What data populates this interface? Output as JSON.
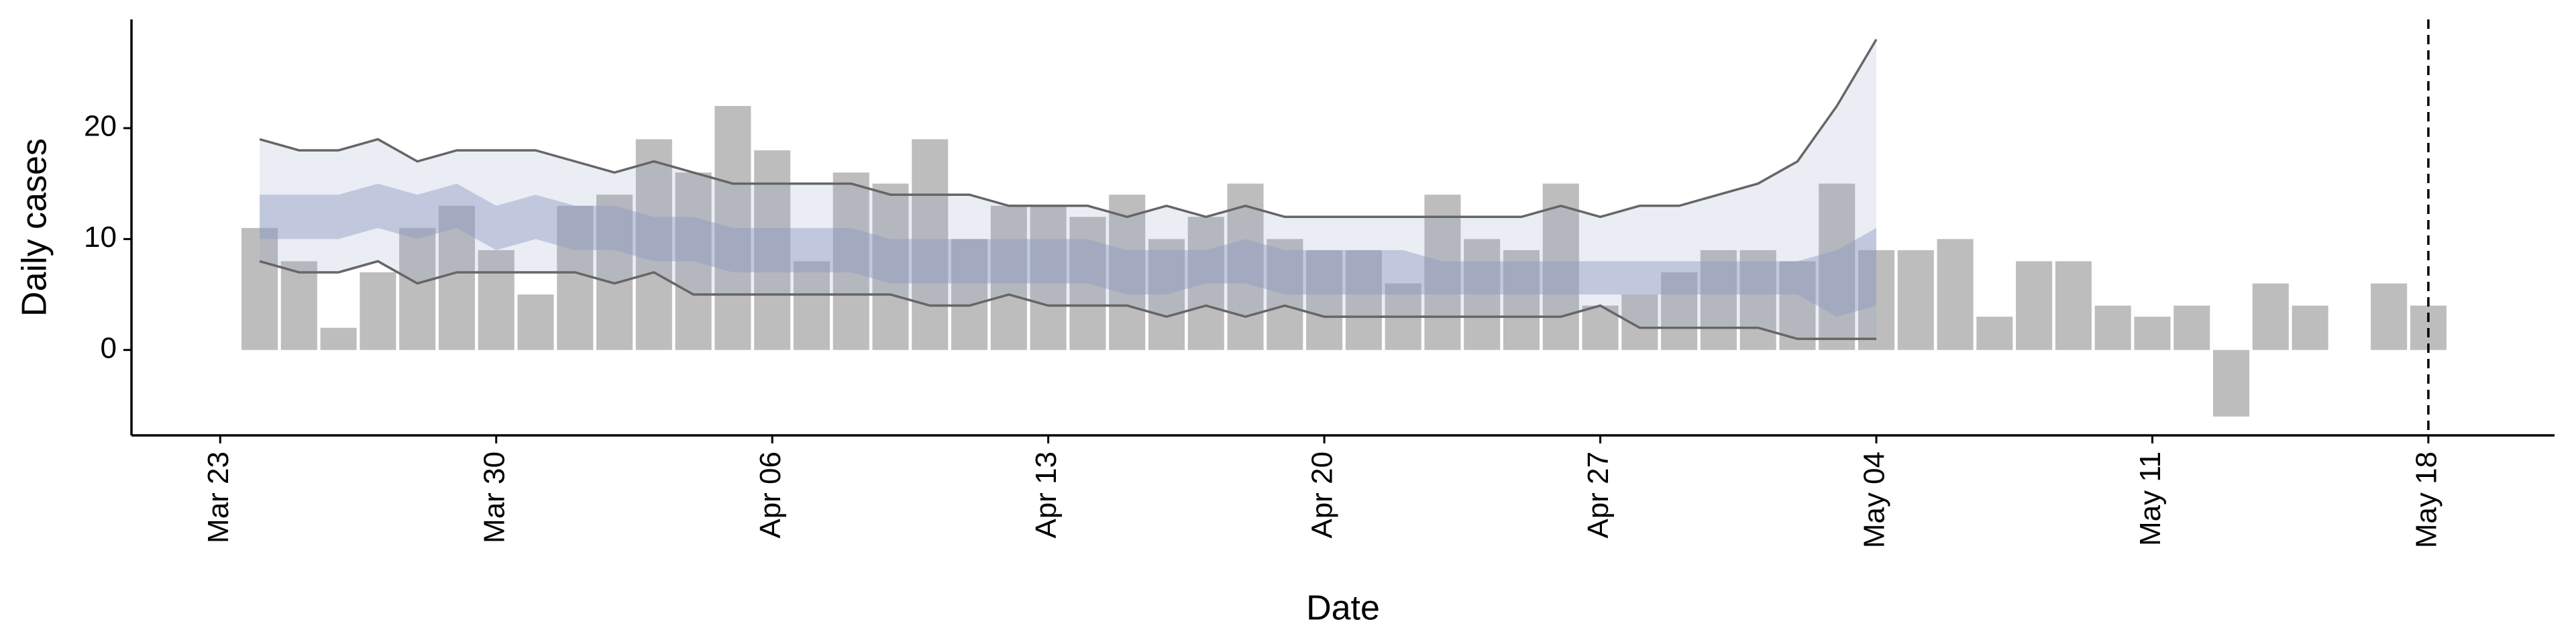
{
  "chart_data": {
    "type": "bar",
    "x_label": "Date",
    "y_label": "Daily cases",
    "x": [
      1,
      2,
      3,
      4,
      5,
      6,
      7,
      8,
      9,
      10,
      11,
      12,
      13,
      14,
      15,
      16,
      17,
      18,
      19,
      20,
      21,
      22,
      23,
      24,
      25,
      26,
      27,
      28,
      29,
      30,
      31,
      32,
      33,
      34,
      35,
      36,
      37,
      38,
      39,
      40,
      41,
      42,
      43,
      44,
      45,
      46,
      47,
      48,
      49,
      50,
      51,
      52,
      53,
      54,
      55,
      56
    ],
    "values": [
      11,
      8,
      2,
      7,
      11,
      13,
      9,
      5,
      13,
      14,
      19,
      16,
      22,
      18,
      8,
      16,
      15,
      19,
      10,
      13,
      13,
      12,
      14,
      10,
      12,
      15,
      10,
      9,
      9,
      6,
      14,
      10,
      9,
      15,
      4,
      5,
      7,
      9,
      9,
      8,
      15,
      9,
      9,
      10,
      3,
      8,
      8,
      4,
      3,
      4,
      -6,
      6,
      4,
      null,
      6,
      4
    ],
    "color": "#bdbdbd",
    "model_x": [
      1,
      2,
      3,
      4,
      5,
      6,
      7,
      8,
      9,
      10,
      11,
      12,
      13,
      14,
      15,
      16,
      17,
      18,
      19,
      20,
      21,
      22,
      23,
      24,
      25,
      26,
      27,
      28,
      29,
      30,
      31,
      32,
      33,
      34,
      35,
      36,
      37,
      38,
      39,
      40,
      41,
      42
    ],
    "outer_upper": [
      19,
      18,
      18,
      19,
      17,
      18,
      18,
      18,
      17,
      16,
      17,
      16,
      15,
      15,
      15,
      15,
      14,
      14,
      14,
      13,
      13,
      13,
      12,
      13,
      12,
      13,
      12,
      12,
      12,
      12,
      12,
      12,
      12,
      13,
      12,
      13,
      13,
      14,
      15,
      17,
      22,
      28
    ],
    "outer_lower": [
      8,
      7,
      7,
      8,
      6,
      7,
      7,
      7,
      7,
      6,
      7,
      5,
      5,
      5,
      5,
      5,
      5,
      4,
      4,
      5,
      4,
      4,
      4,
      3,
      4,
      3,
      4,
      3,
      3,
      3,
      3,
      3,
      3,
      3,
      4,
      2,
      2,
      2,
      2,
      1,
      1,
      1
    ],
    "inner_upper": [
      14,
      14,
      14,
      15,
      14,
      15,
      13,
      14,
      13,
      13,
      12,
      12,
      11,
      11,
      11,
      11,
      10,
      10,
      10,
      10,
      10,
      10,
      9,
      9,
      9,
      10,
      9,
      9,
      9,
      9,
      8,
      8,
      8,
      8,
      8,
      8,
      8,
      8,
      8,
      8,
      9,
      11
    ],
    "inner_lower": [
      10,
      10,
      10,
      11,
      10,
      11,
      9,
      10,
      9,
      9,
      8,
      8,
      7,
      7,
      7,
      7,
      6,
      6,
      6,
      6,
      6,
      6,
      5,
      5,
      6,
      6,
      5,
      5,
      5,
      5,
      5,
      5,
      5,
      5,
      5,
      5,
      5,
      5,
      5,
      5,
      3,
      4
    ],
    "band_color": "#8e9bc4",
    "line_color": "#666666",
    "vline_x": 56,
    "xlim": [
      -2.25,
      59.2
    ],
    "ylim": [
      -7.7,
      29.8
    ],
    "xticks": [
      {
        "value": 0,
        "label": "Mar 23"
      },
      {
        "value": 7,
        "label": "Mar 30"
      },
      {
        "value": 14,
        "label": "Apr 06"
      },
      {
        "value": 21,
        "label": "Apr 13"
      },
      {
        "value": 28,
        "label": "Apr 20"
      },
      {
        "value": 35,
        "label": "Apr 27"
      },
      {
        "value": 42,
        "label": "May 04"
      },
      {
        "value": 49,
        "label": "May 11"
      },
      {
        "value": 56,
        "label": "May 18"
      }
    ],
    "yticks": [
      0,
      10,
      20
    ]
  }
}
